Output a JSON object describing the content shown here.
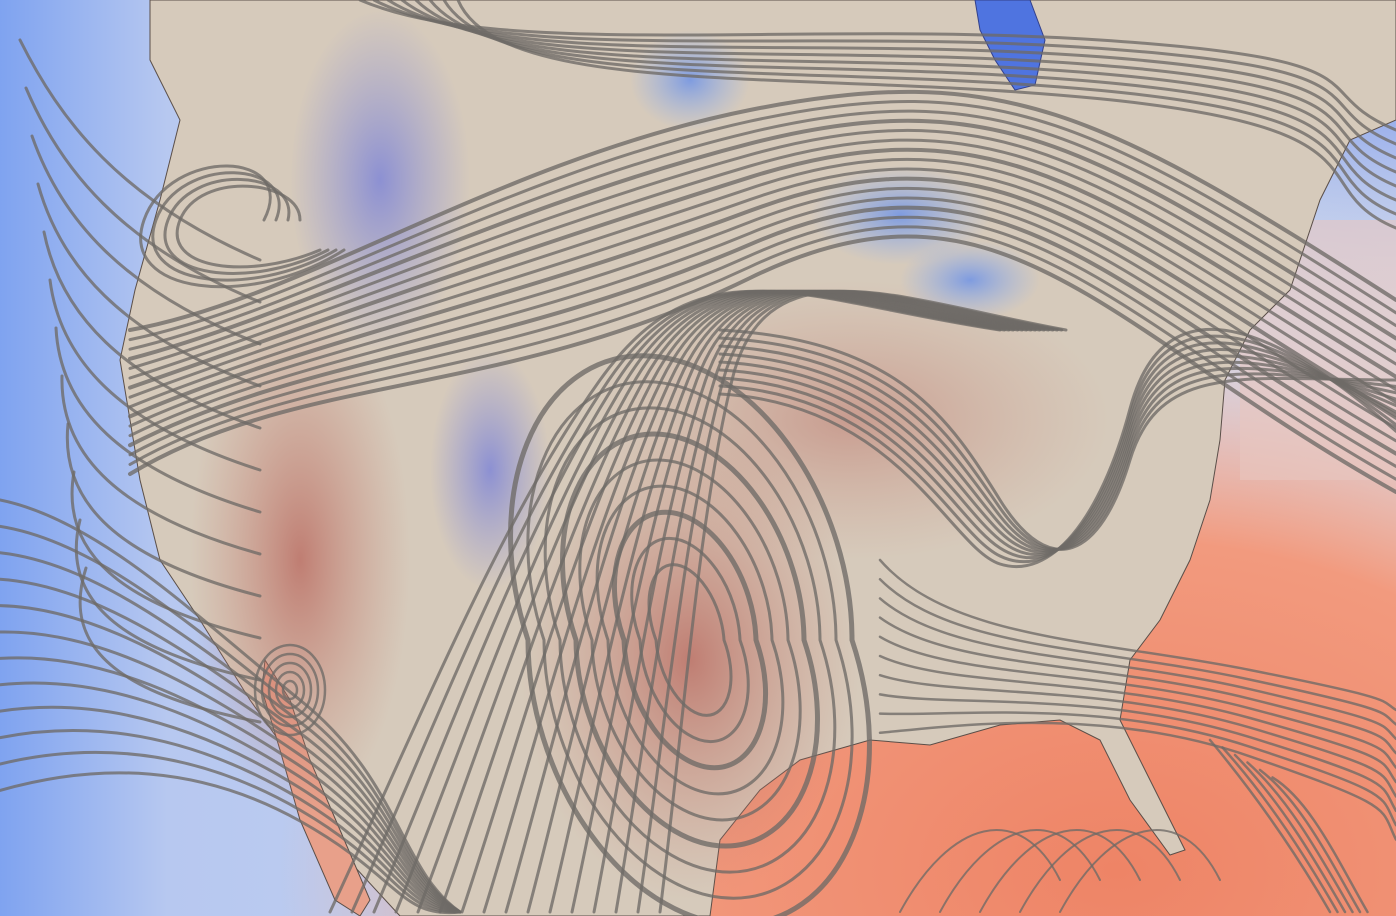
{
  "map": {
    "layers": [
      "temperature-field",
      "terrain-relief",
      "coastlines",
      "streamlines"
    ],
    "colors": {
      "cold_ocean": "#7fa3f0",
      "cool_ocean": "#c9d5ee",
      "warm_ocean": "#ef8e72",
      "land_base": "#d6cabb",
      "land_warm": "#c98878",
      "land_cold": "#8a90d8",
      "lake": "#4f74e0",
      "streamline": "#6e6a66"
    }
  }
}
